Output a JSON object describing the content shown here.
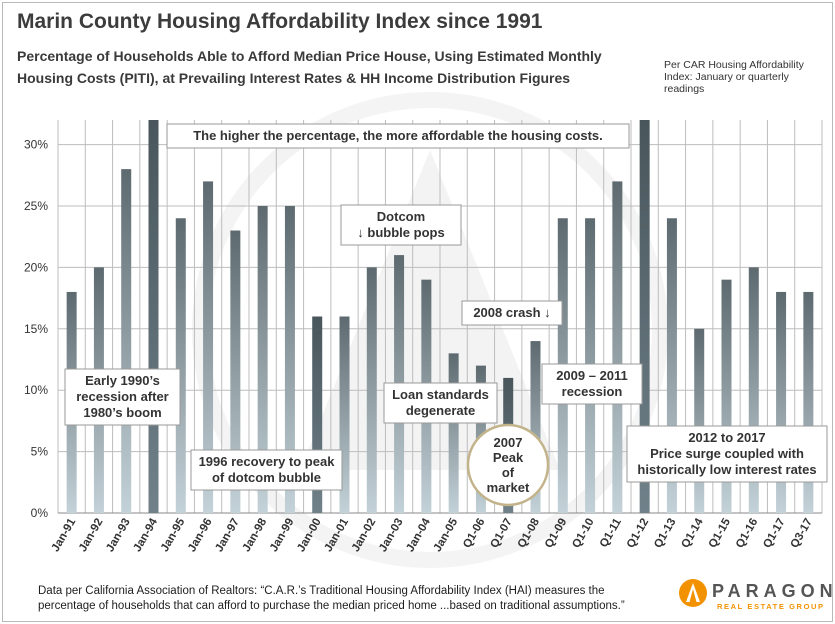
{
  "header": {
    "title": "Marin County Housing Affordability Index since 1991",
    "subtitle": "Percentage of Households Able to Afford Median Price House, Using Estimated Monthly Housing Costs (PITI), at Prevailing Interest Rates & HH Income Distribution Figures",
    "side_note": "Per CAR Housing Affordability Index: January or quarterly readings"
  },
  "chart_data": {
    "type": "bar",
    "title": "Marin County Housing Affordability Index since 1991",
    "xlabel": "",
    "ylabel": "",
    "ylim": [
      0,
      32
    ],
    "yticks": [
      0,
      5,
      10,
      15,
      20,
      25,
      30
    ],
    "ytick_labels": [
      "0%",
      "5%",
      "10%",
      "15%",
      "20%",
      "25%",
      "30%"
    ],
    "categories": [
      "Jan-91",
      "Jan-92",
      "Jan-93",
      "Jan-94",
      "Jan-95",
      "Jan-96",
      "Jan-97",
      "Jan-98",
      "Jan-99",
      "Jan-00",
      "Jan-01",
      "Jan-02",
      "Jan-03",
      "Jan-04",
      "Jan-05",
      "Q1-06",
      "Q1-07",
      "Q1-08",
      "Q1-09",
      "Q1-10",
      "Q1-11",
      "Q1-12",
      "Q1-13",
      "Q1-14",
      "Q1-15",
      "Q1-16",
      "Q1-17",
      "Q3-17"
    ],
    "values": [
      18,
      20,
      28,
      32,
      24,
      27,
      23,
      25,
      25,
      16,
      16,
      20,
      21,
      19,
      13,
      12,
      11,
      14,
      24,
      24,
      27,
      32,
      24,
      15,
      19,
      20,
      18,
      18
    ],
    "highlight_categories": [
      "Jan-94",
      "Jan-00",
      "Q1-07",
      "Q1-12"
    ],
    "colors": {
      "bar_top": "#5d6a70",
      "bar_bottom": "#c3d2d8",
      "highlight_top": "#49565c",
      "highlight_bottom": "#70818a",
      "grid": "#bdbdbd"
    },
    "annotations": [
      {
        "id": "higher",
        "text": "The higher the percentage, the more affordable the housing costs."
      },
      {
        "id": "early90s",
        "text": "Early 1990’s recession after 1980’s boom"
      },
      {
        "id": "recovery96",
        "text": "1996 recovery to peak of dotcom bubble"
      },
      {
        "id": "dotcom",
        "text": "Dotcom ↓ bubble pops"
      },
      {
        "id": "crash2008",
        "text": "2008 crash ↓"
      },
      {
        "id": "loan",
        "text": "Loan standards degenerate"
      },
      {
        "id": "peak2007",
        "text": "2007 Peak of market"
      },
      {
        "id": "recession0911",
        "text": "2009 – 2011 recession"
      },
      {
        "id": "surge1217",
        "text": "2012 to 2017 Price surge coupled with historically low interest rates"
      }
    ]
  },
  "footer": {
    "text": "Data per California Association of Realtors: “C.A.R.’s Traditional Housing Affordability Index (HAI) measures the percentage of households that can afford to purchase the median priced home ...based on traditional assumptions.”"
  },
  "logo": {
    "name": "PARAGON",
    "tagline": "REAL ESTATE GROUP"
  }
}
